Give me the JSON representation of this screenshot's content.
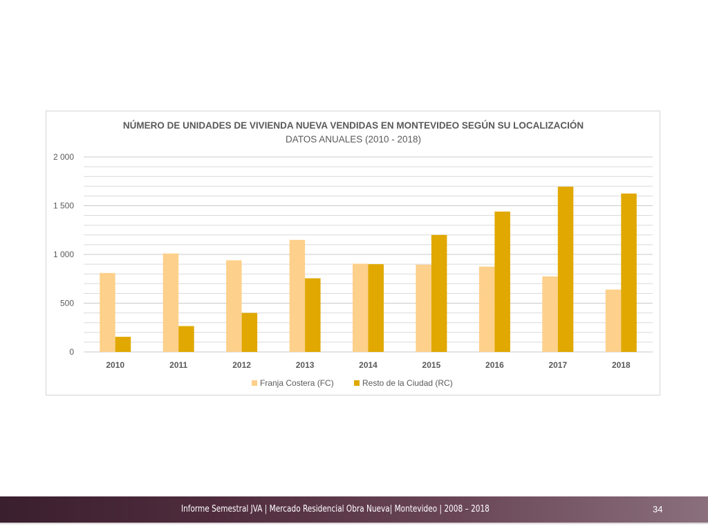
{
  "chart_data": {
    "type": "bar",
    "title": "NÚMERO DE UNIDADES DE VIVIENDA NUEVA VENDIDAS EN MONTEVIDEO SEGÚN SU LOCALIZACIÓN",
    "subtitle": "DATOS ANUALES (2010 - 2018)",
    "xlabel": "",
    "ylabel": "",
    "ylim": [
      0,
      2000
    ],
    "yticks": [
      0,
      500,
      1000,
      1500,
      2000
    ],
    "ytick_labels": [
      "0",
      "500",
      "1 000",
      "1 500",
      "2 000"
    ],
    "minor_grid_step": 100,
    "grid": true,
    "legend_position": "bottom",
    "categories": [
      "2010",
      "2011",
      "2012",
      "2013",
      "2014",
      "2015",
      "2016",
      "2017",
      "2018"
    ],
    "series": [
      {
        "name": "Franja Costera (FC)",
        "color": "#fdd08b",
        "values": [
          810,
          1010,
          940,
          1150,
          905,
          895,
          875,
          775,
          640
        ]
      },
      {
        "name": "Resto de la Ciudad (RC)",
        "color": "#e0a800",
        "values": [
          155,
          265,
          400,
          755,
          900,
          1200,
          1440,
          1695,
          1625
        ]
      }
    ]
  },
  "footer": {
    "text": "Informe Semestral JVA | Mercado Residencial Obra Nueva| Montevideo | 2008 – 2018",
    "page": "34"
  }
}
